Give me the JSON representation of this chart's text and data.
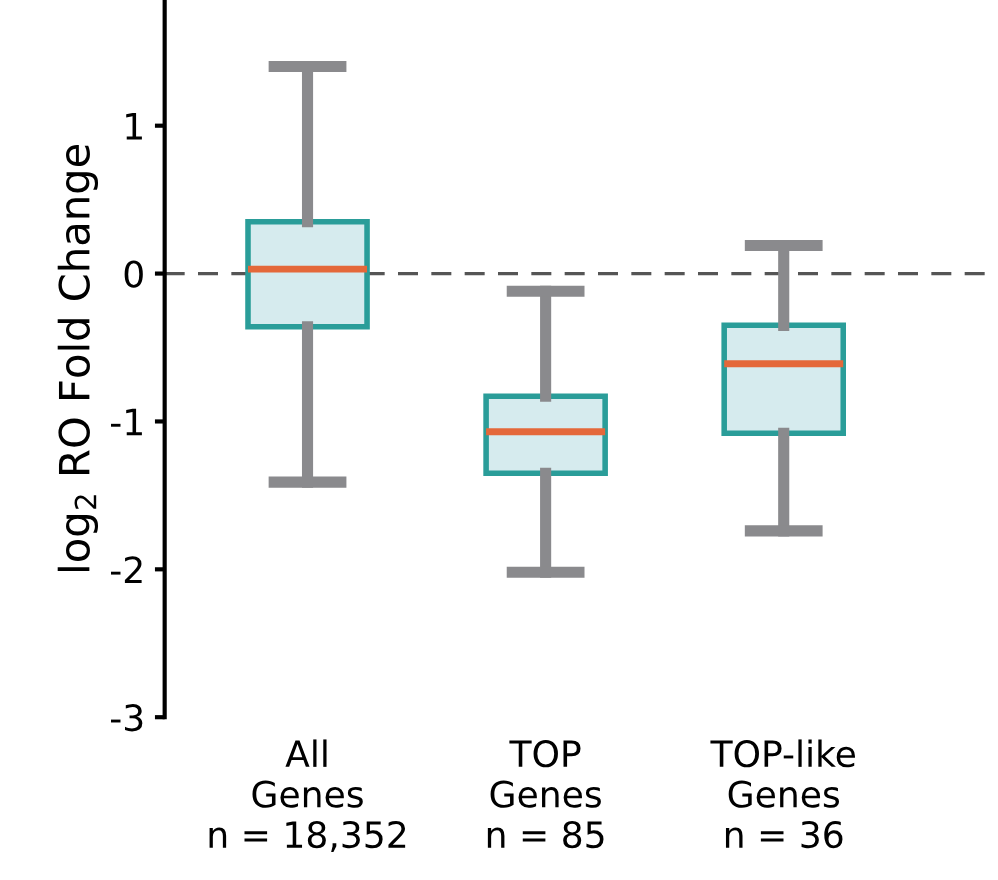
{
  "chart_data": {
    "type": "box",
    "ylabel": "log$_{2}$ RO Fold Change",
    "categories": [
      "All\nGenes\nn = 18,352",
      "TOP\nGenes\nn = 85",
      "TOP-like\nGenes\nn = 36"
    ],
    "series": [
      {
        "color": "#d6ebee",
        "boxes": [
          {
            "low": -1.41,
            "q1": -0.36,
            "median": 0.03,
            "q3": 0.35,
            "high": 1.4
          },
          {
            "low": -2.02,
            "q1": -1.35,
            "median": -1.07,
            "q3": -0.83,
            "high": -0.12
          },
          {
            "low": -1.74,
            "q1": -1.08,
            "median": -0.61,
            "q3": -0.35,
            "high": 0.19
          }
        ]
      }
    ],
    "ylim": [
      -3,
      1.85
    ],
    "yticks": [
      -3,
      -2,
      -1,
      0,
      1
    ],
    "ref_lines": [
      {
        "axis": "y",
        "value": 0,
        "color": "#555555",
        "line_style": "dashed"
      }
    ],
    "grid": false,
    "legend": false
  }
}
